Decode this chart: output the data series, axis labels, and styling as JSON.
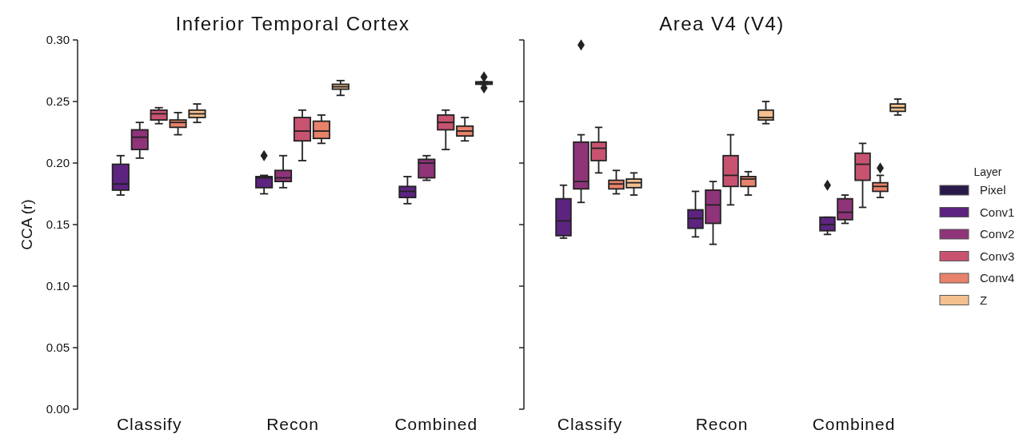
{
  "chart_data": [
    {
      "type": "box",
      "title": "Inferior Temporal Cortex",
      "ylabel": "CCA (r)",
      "categories": [
        "Classify",
        "Recon",
        "Combined"
      ],
      "ylim": [
        0,
        0.3
      ],
      "yticks": [
        {
          "value": 0,
          "label": "0.00"
        },
        0.05,
        {
          "value": 0.1,
          "label": "0.10"
        },
        0.15,
        {
          "value": 0.2,
          "label": "0.20"
        },
        0.25,
        {
          "value": 0.3,
          "label": "0.30"
        }
      ],
      "legend": false,
      "series": [
        {
          "color": "#2a1a4a",
          "boxes": [
            null,
            null,
            null
          ]
        },
        {
          "color": "#5c2480",
          "boxes": [
            {
              "low": 0.174,
              "q1": 0.178,
              "median": 0.183,
              "q3": 0.199,
              "high": 0.206
            },
            {
              "low": 0.175,
              "q1": 0.18,
              "median": 0.188,
              "q3": 0.189,
              "high": 0.19,
              "outliers": [
                0.206
              ]
            },
            {
              "low": 0.167,
              "q1": 0.172,
              "median": 0.177,
              "q3": 0.181,
              "high": 0.189
            }
          ]
        },
        {
          "color": "#8f3479",
          "boxes": [
            {
              "low": 0.204,
              "q1": 0.211,
              "median": 0.221,
              "q3": 0.227,
              "high": 0.233
            },
            {
              "low": 0.18,
              "q1": 0.185,
              "median": 0.188,
              "q3": 0.194,
              "high": 0.206
            },
            {
              "low": 0.186,
              "q1": 0.188,
              "median": 0.2,
              "q3": 0.203,
              "high": 0.206
            }
          ]
        },
        {
          "color": "#c85370",
          "boxes": [
            {
              "low": 0.232,
              "q1": 0.235,
              "median": 0.24,
              "q3": 0.243,
              "high": 0.245
            },
            {
              "low": 0.202,
              "q1": 0.218,
              "median": 0.226,
              "q3": 0.237,
              "high": 0.243
            },
            {
              "low": 0.211,
              "q1": 0.227,
              "median": 0.233,
              "q3": 0.239,
              "high": 0.243
            }
          ]
        },
        {
          "color": "#e8826a",
          "boxes": [
            {
              "low": 0.223,
              "q1": 0.229,
              "median": 0.233,
              "q3": 0.235,
              "high": 0.241
            },
            {
              "low": 0.216,
              "q1": 0.22,
              "median": 0.226,
              "q3": 0.234,
              "high": 0.239
            },
            {
              "low": 0.218,
              "q1": 0.222,
              "median": 0.226,
              "q3": 0.23,
              "high": 0.237
            }
          ]
        },
        {
          "color": "#f4c090",
          "boxes": [
            {
              "low": 0.233,
              "q1": 0.237,
              "median": 0.24,
              "q3": 0.243,
              "high": 0.248
            },
            {
              "low": 0.255,
              "q1": 0.26,
              "median": 0.262,
              "q3": 0.264,
              "high": 0.267
            },
            {
              "low": 0.264,
              "q1": 0.264,
              "median": 0.265,
              "q3": 0.266,
              "high": 0.266,
              "outliers": [
                0.27,
                0.261
              ]
            }
          ]
        }
      ]
    },
    {
      "type": "box",
      "title": "Area V4 (V4)",
      "categories": [
        "Classify",
        "Recon",
        "Combined"
      ],
      "ylim": [
        0,
        0.3
      ],
      "yticks": [
        0,
        0.05,
        0.1,
        0.15,
        0.2,
        0.25,
        0.3
      ],
      "tick_labels": "x",
      "legend": "right",
      "legend_title": "Layer",
      "series": [
        {
          "name": "Pixel",
          "color": "#2a1a4a",
          "boxes": [
            null,
            null,
            null
          ]
        },
        {
          "name": "Conv1",
          "color": "#5c2480",
          "boxes": [
            {
              "low": 0.139,
              "q1": 0.141,
              "median": 0.153,
              "q3": 0.171,
              "high": 0.182
            },
            {
              "low": 0.14,
              "q1": 0.147,
              "median": 0.155,
              "q3": 0.162,
              "high": 0.177
            },
            {
              "low": 0.142,
              "q1": 0.145,
              "median": 0.15,
              "q3": 0.156,
              "high": 0.156,
              "outliers": [
                0.182
              ]
            }
          ]
        },
        {
          "name": "Conv2",
          "color": "#8f3479",
          "boxes": [
            {
              "low": 0.168,
              "q1": 0.179,
              "median": 0.185,
              "q3": 0.217,
              "high": 0.223,
              "outliers": [
                0.296
              ]
            },
            {
              "low": 0.134,
              "q1": 0.151,
              "median": 0.166,
              "q3": 0.178,
              "high": 0.185
            },
            {
              "low": 0.151,
              "q1": 0.154,
              "median": 0.16,
              "q3": 0.171,
              "high": 0.174
            }
          ]
        },
        {
          "name": "Conv3",
          "color": "#c85370",
          "boxes": [
            {
              "low": 0.192,
              "q1": 0.202,
              "median": 0.212,
              "q3": 0.217,
              "high": 0.229
            },
            {
              "low": 0.166,
              "q1": 0.181,
              "median": 0.19,
              "q3": 0.206,
              "high": 0.223
            },
            {
              "low": 0.164,
              "q1": 0.186,
              "median": 0.199,
              "q3": 0.208,
              "high": 0.216
            }
          ]
        },
        {
          "name": "Conv4",
          "color": "#e8826a",
          "boxes": [
            {
              "low": 0.175,
              "q1": 0.179,
              "median": 0.183,
              "q3": 0.186,
              "high": 0.194
            },
            {
              "low": 0.174,
              "q1": 0.181,
              "median": 0.187,
              "q3": 0.189,
              "high": 0.193
            },
            {
              "low": 0.172,
              "q1": 0.177,
              "median": 0.181,
              "q3": 0.184,
              "high": 0.19,
              "outliers": [
                0.196
              ]
            }
          ]
        },
        {
          "name": "Z",
          "color": "#f4c090",
          "boxes": [
            {
              "low": 0.174,
              "q1": 0.18,
              "median": 0.184,
              "q3": 0.187,
              "high": 0.192
            },
            {
              "low": 0.232,
              "q1": 0.235,
              "median": 0.237,
              "q3": 0.243,
              "high": 0.25
            },
            {
              "low": 0.239,
              "q1": 0.242,
              "median": 0.245,
              "q3": 0.248,
              "high": 0.252
            }
          ]
        }
      ]
    }
  ]
}
